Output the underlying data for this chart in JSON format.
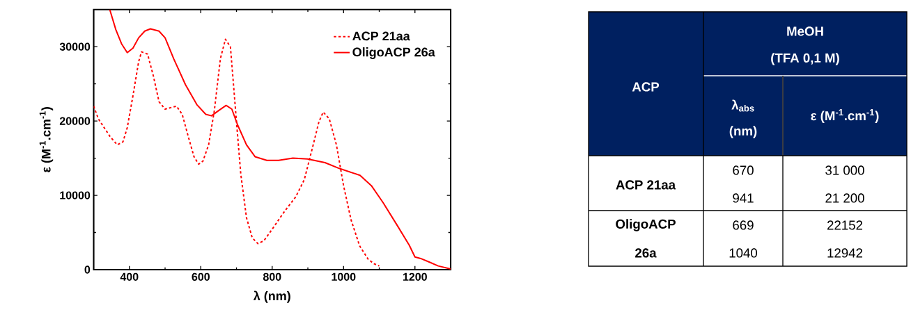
{
  "chart_data": [
    {
      "type": "line",
      "xlabel": "λ (nm)",
      "ylabel": "ε (M$^{-1}$.cm$^{-1}$)",
      "xlim": [
        300,
        1300
      ],
      "ylim": [
        0,
        35000
      ],
      "xticks": [
        400,
        600,
        800,
        1000,
        1200
      ],
      "yticks": [
        0,
        10000,
        20000,
        30000
      ],
      "legend": "top right",
      "series": [
        {
          "name": "ACP 21aa",
          "color": "#ff0000",
          "line_style": "dotted",
          "x": [
            300,
            313,
            346,
            366,
            382,
            394,
            410,
            426,
            434,
            451,
            467,
            483,
            500,
            516,
            532,
            548,
            565,
            581,
            594,
            606,
            622,
            638,
            655,
            669,
            683,
            691,
            700,
            712,
            728,
            744,
            760,
            777,
            801,
            834,
            866,
            890,
            915,
            931,
            943,
            960,
            980,
            1000,
            1021,
            1045,
            1069,
            1085,
            1100
          ],
          "values": [
            22000,
            20300,
            17900,
            16800,
            17200,
            19100,
            23400,
            28000,
            29300,
            29000,
            26100,
            22600,
            21600,
            21800,
            22000,
            20900,
            17900,
            15200,
            14200,
            14600,
            16800,
            21400,
            28400,
            31000,
            30000,
            25300,
            19900,
            12900,
            7000,
            4300,
            3500,
            3900,
            5500,
            7800,
            9800,
            12100,
            16800,
            19900,
            21200,
            20300,
            16800,
            11300,
            6700,
            3200,
            1400,
            800,
            500
          ]
        },
        {
          "name": "OligoACP 26a",
          "color": "#ff0000",
          "line_style": "solid",
          "x": [
            345,
            362,
            378,
            394,
            410,
            426,
            443,
            459,
            483,
            500,
            524,
            557,
            589,
            614,
            630,
            650,
            671,
            687,
            703,
            728,
            752,
            785,
            818,
            858,
            899,
            948,
            989,
            1046,
            1078,
            1111,
            1151,
            1184,
            1200,
            1216,
            1241,
            1265,
            1300
          ],
          "values": [
            35000,
            32300,
            30400,
            29200,
            29800,
            31200,
            32100,
            32400,
            32100,
            31200,
            28400,
            24900,
            22200,
            20900,
            20700,
            21400,
            22100,
            21600,
            19500,
            16800,
            15200,
            14700,
            14700,
            15000,
            14900,
            14400,
            13600,
            12700,
            11300,
            9000,
            5900,
            3300,
            1700,
            1500,
            1000,
            500,
            100
          ]
        }
      ]
    },
    {
      "type": "other",
      "annotations": [
        "ACP",
        "MeOH",
        "(TFA 0,1 M)",
        "λ$_{abs}$",
        "(nm)",
        "ε (M$^{-1}$.cm$^{-1}$)",
        "ACP 21aa",
        "670",
        "941",
        "31 000",
        "21 200",
        "OligoACP",
        "26a",
        "669",
        "1040",
        "22152",
        "12942"
      ]
    }
  ]
}
